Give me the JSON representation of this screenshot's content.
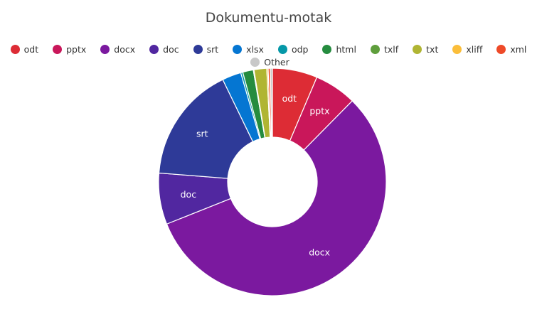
{
  "chart_data": {
    "type": "pie",
    "variant": "donut",
    "title": "Dokumentu-motak",
    "legend_position": "top",
    "categories": [
      "odt",
      "pptx",
      "docx",
      "doc",
      "srt",
      "xlsx",
      "odp",
      "html",
      "txlf",
      "txt",
      "xliff",
      "xml",
      "Other"
    ],
    "values": [
      6.4,
      6.0,
      56.7,
      7.3,
      16.6,
      2.7,
      0.3,
      1.5,
      0.1,
      1.8,
      0.2,
      0.3,
      0.3
    ],
    "unit": "%",
    "colors": [
      "#dd2c35",
      "#c9175a",
      "#7b199f",
      "#5127a0",
      "#2e3a98",
      "#0576d2",
      "#0598a8",
      "#258c3f",
      "#5f9e3c",
      "#b0b533",
      "#fbbe3a",
      "#ee4a28",
      "#c8c8c8"
    ],
    "slice_labels_shown": [
      "odt",
      "pptx",
      "docx",
      "doc",
      "srt"
    ],
    "center": [
      383,
      256
    ],
    "outer_radius": 160,
    "inner_radius": 63
  },
  "legend": {
    "row1": [
      "odt",
      "pptx",
      "docx",
      "doc",
      "srt",
      "xlsx",
      "odp",
      "html",
      "txlf",
      "txt",
      "xliff",
      "xml"
    ],
    "row2": [
      "Other"
    ]
  }
}
